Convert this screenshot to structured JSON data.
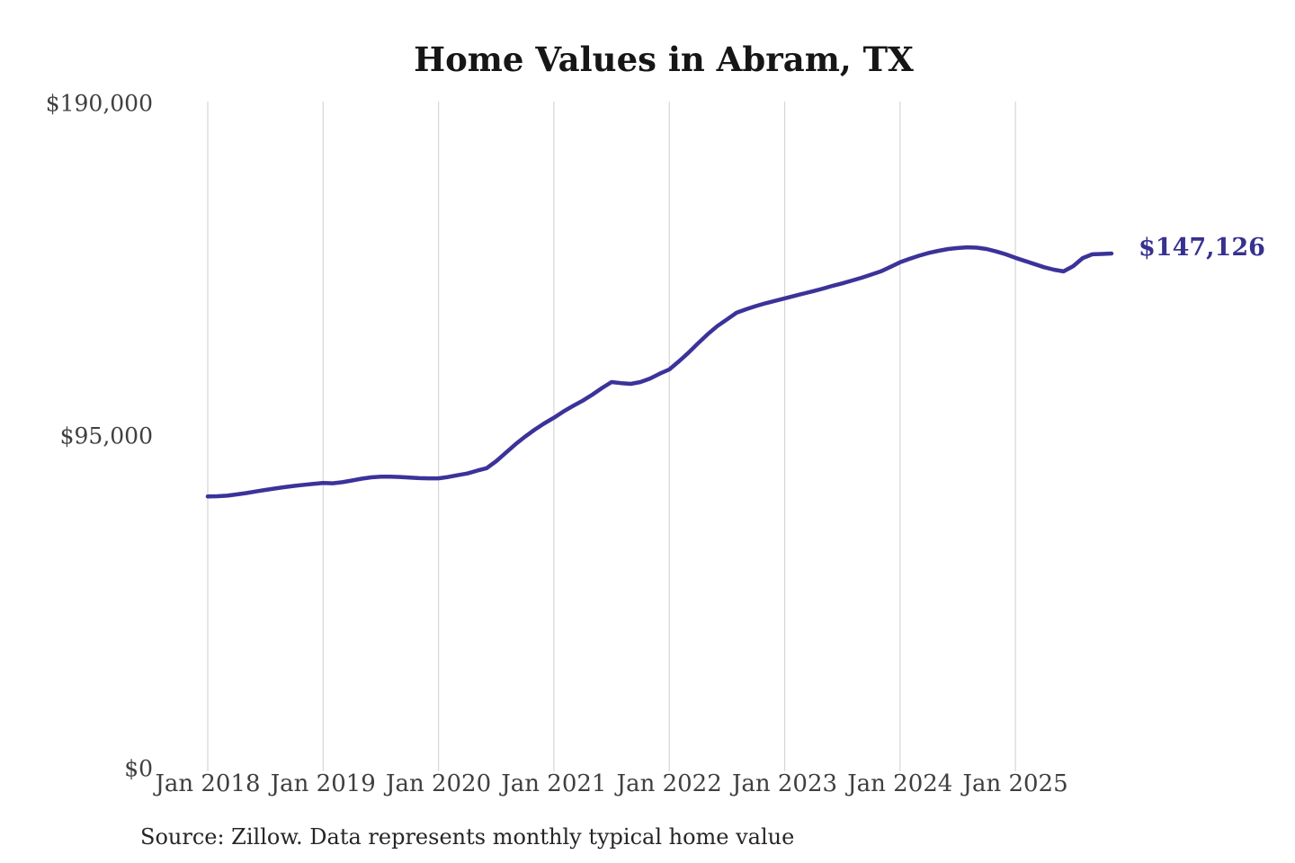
{
  "title": "Home Values in Abram, TX",
  "end_label": "$147,126",
  "source_note": "Source: Zillow. Data represents monthly typical home value",
  "colors": {
    "line": "#3b3399",
    "end_label": "#37318f",
    "grid": "#d6d6d6",
    "axis_text": "#3f3f3f",
    "title_text": "#161616",
    "source_text": "#262626",
    "background": "#ffffff"
  },
  "chart_data": {
    "type": "line",
    "title": "Home Values in Abram, TX",
    "xlabel": "",
    "ylabel": "",
    "ylim": [
      0,
      190000
    ],
    "grid": "vertical-only",
    "legend": "none",
    "x_range": {
      "start": "Jan 2018",
      "end": "Nov 2025",
      "interval": "monthly"
    },
    "x_ticks": [
      {
        "label": "Jan 2018",
        "month_index": 0
      },
      {
        "label": "Jan 2019",
        "month_index": 12
      },
      {
        "label": "Jan 2020",
        "month_index": 24
      },
      {
        "label": "Jan 2021",
        "month_index": 36
      },
      {
        "label": "Jan 2022",
        "month_index": 48
      },
      {
        "label": "Jan 2023",
        "month_index": 60
      },
      {
        "label": "Jan 2024",
        "month_index": 72
      },
      {
        "label": "Jan 2025",
        "month_index": 84
      }
    ],
    "y_ticks": [
      {
        "label": "$0",
        "value": 0
      },
      {
        "label": "$95,000",
        "value": 95000
      },
      {
        "label": "$190,000",
        "value": 190000
      }
    ],
    "final_value": 147126,
    "series": [
      {
        "name": "Monthly typical home value",
        "values": [
          77750,
          77800,
          77950,
          78300,
          78700,
          79150,
          79600,
          80000,
          80400,
          80750,
          81050,
          81350,
          81600,
          81500,
          81800,
          82300,
          82800,
          83200,
          83400,
          83400,
          83300,
          83100,
          82950,
          82900,
          82900,
          83300,
          83800,
          84300,
          85100,
          85800,
          87800,
          90200,
          92600,
          94800,
          96800,
          98600,
          100200,
          102000,
          103600,
          105100,
          106800,
          108700,
          110400,
          110100,
          109900,
          110400,
          111400,
          112800,
          114000,
          116300,
          118800,
          121500,
          124100,
          126400,
          128300,
          130200,
          131200,
          132100,
          132900,
          133600,
          134300,
          135000,
          135700,
          136400,
          137100,
          137900,
          138600,
          139400,
          140200,
          141100,
          142000,
          143300,
          144600,
          145600,
          146500,
          147300,
          147900,
          148400,
          148700,
          148900,
          148800,
          148400,
          147700,
          146900,
          145900,
          145000,
          144100,
          143200,
          142500,
          142000,
          143500,
          145800,
          146900,
          147000,
          147126
        ]
      }
    ]
  }
}
